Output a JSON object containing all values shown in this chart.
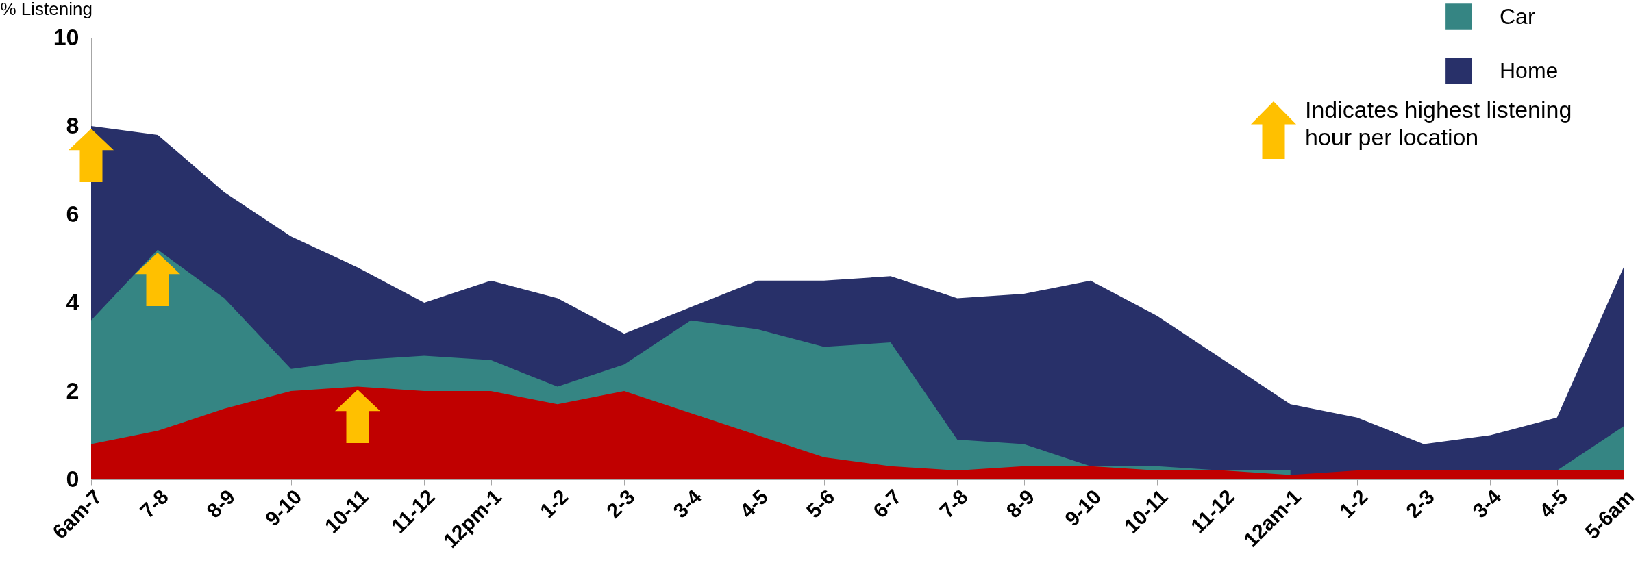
{
  "chart_data": {
    "type": "area",
    "ylabel": "% Listening",
    "categories": [
      "6am-7",
      "7-8",
      "8-9",
      "9-10",
      "10-11",
      "11-12",
      "12pm-1",
      "1-2",
      "2-3",
      "3-4",
      "4-5",
      "5-6",
      "6-7",
      "7-8",
      "8-9",
      "9-10",
      "10-11",
      "11-12",
      "12am-1",
      "1-2",
      "2-3",
      "3-4",
      "4-5",
      "5-6am"
    ],
    "series": [
      {
        "name": "Home",
        "color": "#283069",
        "values": [
          8.0,
          7.8,
          6.5,
          5.5,
          4.8,
          4.0,
          4.5,
          4.1,
          3.3,
          3.9,
          4.5,
          4.5,
          4.6,
          4.1,
          4.2,
          4.5,
          3.7,
          2.7,
          1.7,
          1.4,
          0.8,
          1.0,
          1.4,
          4.8
        ]
      },
      {
        "name": "Car",
        "color": "#358583",
        "values": [
          3.6,
          5.2,
          4.1,
          2.5,
          2.7,
          2.8,
          2.7,
          2.1,
          2.6,
          3.6,
          3.4,
          3.0,
          3.1,
          0.9,
          0.8,
          0.3,
          0.3,
          0.2,
          0.2,
          null,
          null,
          null,
          0.2,
          1.2
        ]
      },
      {
        "color": "#c00000",
        "values": [
          0.8,
          1.1,
          1.6,
          2.0,
          2.1,
          2.0,
          2.0,
          1.7,
          2.0,
          1.5,
          1.0,
          0.5,
          0.3,
          0.2,
          0.3,
          0.3,
          0.2,
          0.2,
          0.1,
          0.2,
          0.2,
          0.2,
          0.2,
          0.2
        ]
      }
    ],
    "ylim": [
      0,
      10
    ],
    "yticks": [
      0,
      2,
      4,
      6,
      8,
      10
    ],
    "grid": false,
    "legend": "top right",
    "annotations": [
      "Indicates highest listening hour per location"
    ]
  }
}
